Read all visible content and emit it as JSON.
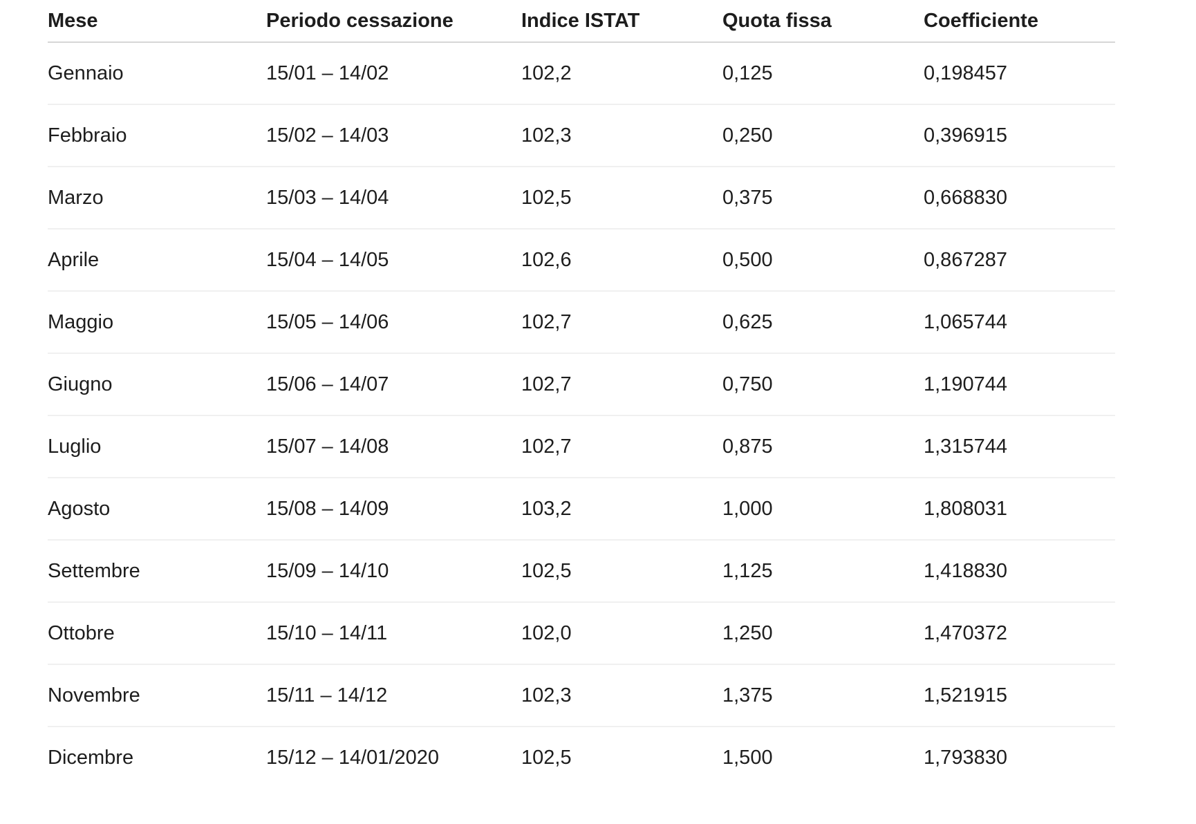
{
  "chart_data": {
    "type": "table",
    "columns": [
      "Mese",
      "Periodo cessazione",
      "Indice ISTAT",
      "Quota fissa",
      "Coefficiente"
    ],
    "rows": [
      [
        "Gennaio",
        "15/01 – 14/02",
        "102,2",
        "0,125",
        "0,198457"
      ],
      [
        "Febbraio",
        "15/02 – 14/03",
        "102,3",
        "0,250",
        "0,396915"
      ],
      [
        "Marzo",
        "15/03 – 14/04",
        "102,5",
        "0,375",
        "0,668830"
      ],
      [
        "Aprile",
        "15/04 – 14/05",
        "102,6",
        "0,500",
        "0,867287"
      ],
      [
        "Maggio",
        "15/05 – 14/06",
        "102,7",
        "0,625",
        "1,065744"
      ],
      [
        "Giugno",
        "15/06 – 14/07",
        "102,7",
        "0,750",
        "1,190744"
      ],
      [
        "Luglio",
        "15/07 – 14/08",
        "102,7",
        "0,875",
        "1,315744"
      ],
      [
        "Agosto",
        "15/08 – 14/09",
        "103,2",
        "1,000",
        "1,808031"
      ],
      [
        "Settembre",
        "15/09 – 14/10",
        "102,5",
        "1,125",
        "1,418830"
      ],
      [
        "Ottobre",
        "15/10 – 14/11",
        "102,0",
        "1,250",
        "1,470372"
      ],
      [
        "Novembre",
        "15/11 – 14/12",
        "102,3",
        "1,375",
        "1,521915"
      ],
      [
        "Dicembre",
        "15/12 – 14/01/2020",
        "102,5",
        "1,500",
        "1,793830"
      ]
    ],
    "layout": {
      "grid": "horizontal-dividers-only",
      "header_rule_color": "#d6d6d6",
      "row_rule_color": "#f0f0f0"
    }
  },
  "colors": {
    "background": "#ffffff",
    "text": "#1d1d1d",
    "header_divider": "#d6d6d6",
    "row_divider": "#f0f0f0"
  }
}
